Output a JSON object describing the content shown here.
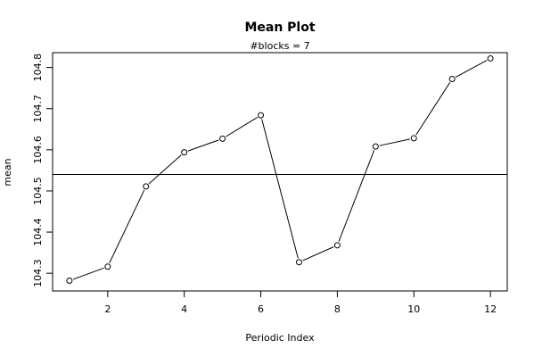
{
  "chart_data": {
    "type": "line",
    "title": "Mean Plot",
    "subtitle": "#blocks =  7",
    "xlabel": "Periodic Index",
    "ylabel": "mean",
    "xlim": [
      0.56,
      12.44
    ],
    "ylim": [
      104.257,
      104.836
    ],
    "x_ticks": [
      2,
      4,
      6,
      8,
      10,
      12
    ],
    "y_ticks": [
      104.3,
      104.4,
      104.5,
      104.6,
      104.7,
      104.8
    ],
    "x_tick_labels": [
      "2",
      "4",
      "6",
      "8",
      "10",
      "12"
    ],
    "y_tick_labels": [
      "104.3",
      "104.4",
      "104.5",
      "104.6",
      "104.7",
      "104.8"
    ],
    "x": [
      1,
      2,
      3,
      4,
      5,
      6,
      7,
      8,
      9,
      10,
      11,
      12
    ],
    "values": [
      104.282,
      104.316,
      104.511,
      104.594,
      104.627,
      104.684,
      104.327,
      104.368,
      104.608,
      104.628,
      104.772,
      104.822
    ],
    "reference_line": 104.54,
    "grid": false,
    "legend": "none",
    "line_color": "#000000",
    "marker": "open-circle"
  }
}
